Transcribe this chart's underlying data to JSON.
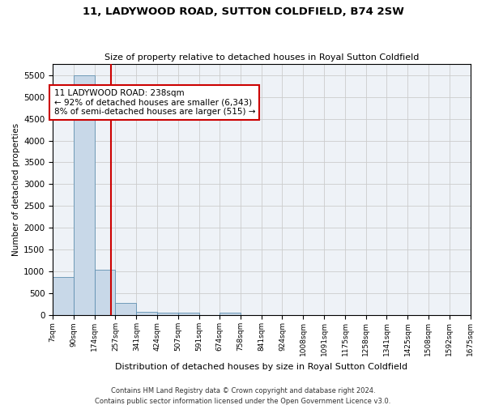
{
  "title": "11, LADYWOOD ROAD, SUTTON COLDFIELD, B74 2SW",
  "subtitle": "Size of property relative to detached houses in Royal Sutton Coldfield",
  "xlabel": "Distribution of detached houses by size in Royal Sutton Coldfield",
  "ylabel": "Number of detached properties",
  "footnote1": "Contains HM Land Registry data © Crown copyright and database right 2024.",
  "footnote2": "Contains public sector information licensed under the Open Government Licence v3.0.",
  "bar_edges": [
    7,
    90,
    174,
    257,
    341,
    424,
    507,
    591,
    674,
    758,
    841,
    924,
    1008,
    1091,
    1175,
    1258,
    1341,
    1425,
    1508,
    1592,
    1675
  ],
  "bar_heights": [
    870,
    5500,
    1050,
    280,
    80,
    70,
    55,
    0,
    55,
    0,
    0,
    0,
    0,
    0,
    0,
    0,
    0,
    0,
    0,
    0
  ],
  "bar_color": "#c8d8e8",
  "bar_edge_color": "#6090b0",
  "property_size": 238,
  "annotation_line1": "11 LADYWOOD ROAD: 238sqm",
  "annotation_line2": "← 92% of detached houses are smaller (6,343)",
  "annotation_line3": "8% of semi-detached houses are larger (515) →",
  "annotation_box_color": "#ffffff",
  "annotation_box_edge_color": "#cc0000",
  "vline_color": "#cc0000",
  "ylim": [
    0,
    5750
  ],
  "yticks": [
    0,
    500,
    1000,
    1500,
    2000,
    2500,
    3000,
    3500,
    4000,
    4500,
    5000,
    5500
  ],
  "grid_color": "#cccccc",
  "background_color": "#eef2f7",
  "title_fontsize": 9.5,
  "subtitle_fontsize": 8,
  "ylabel_fontsize": 7.5,
  "xlabel_fontsize": 8,
  "ytick_fontsize": 7.5,
  "xtick_fontsize": 6.5,
  "annotation_fontsize": 7.5,
  "footnote_fontsize": 6
}
